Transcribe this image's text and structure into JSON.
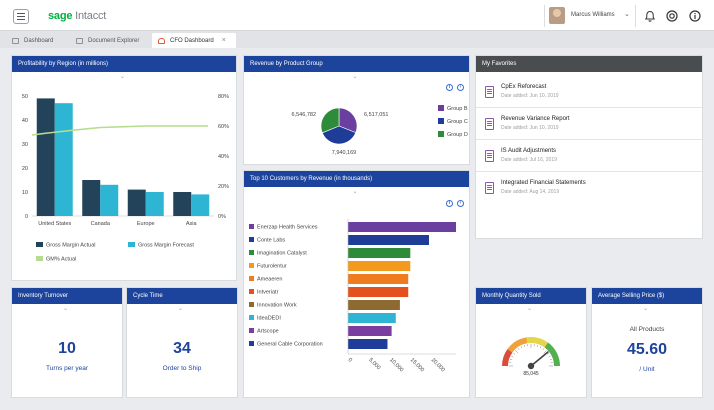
{
  "header": {
    "logo_brand": "sage",
    "logo_product": "Intacct",
    "user_name": "Marcus Williams",
    "user_caret": "⌄",
    "icons": [
      "menu-icon",
      "bell-icon",
      "help-circle-icon",
      "info-icon"
    ]
  },
  "tabs": [
    {
      "label": "Dashboard",
      "icon": "folder-icon"
    },
    {
      "label": "Document Explorer",
      "icon": "folder-icon"
    },
    {
      "label": "CFO Dashboard",
      "icon": "dashboard-icon",
      "close": "×"
    }
  ],
  "panels": {
    "profitability": {
      "title": "Profitability by Region (in millions)",
      "chart_data": {
        "type": "bar",
        "categories": [
          "United States",
          "Canada",
          "Europe",
          "Asia"
        ],
        "series": [
          {
            "name": "Gross Margin Actual",
            "values": [
              49,
              15,
              11,
              10
            ],
            "color": "#22435a"
          },
          {
            "name": "Gross Margin Forecast",
            "values": [
              47,
              13,
              10,
              9
            ],
            "color": "#2eb5d3"
          },
          {
            "name": "GM% Actual",
            "values": [
              56,
              59,
              60,
              60
            ],
            "color": "#b6dc8e"
          }
        ],
        "y_left": {
          "min": 0,
          "max": 50,
          "ticks": [
            "0",
            "10",
            "20",
            "30",
            "40",
            "50"
          ]
        },
        "y_right": {
          "min": 0,
          "max": 80,
          "ticks": [
            "0%",
            "20%",
            "40%",
            "60%",
            "80%"
          ]
        }
      }
    },
    "revenue_group": {
      "title": "Revenue by Product Group",
      "chart_data": {
        "type": "pie",
        "slices": [
          {
            "name": "Group B",
            "value": 6517051,
            "label": "6,517,051",
            "color": "#6b3fa0"
          },
          {
            "name": "Group C",
            "value": 7940169,
            "label": "7,940,169",
            "color": "#1f3c99"
          },
          {
            "name": "Group D",
            "value": 6546782,
            "label": "6,546,782",
            "color": "#2e8b3a"
          }
        ]
      }
    },
    "favorites": {
      "title": "My Favorites",
      "items": [
        {
          "title": "CpEx Reforecast",
          "date": "Date added: Jun 10, 2019"
        },
        {
          "title": "Revenue Variance Report",
          "date": "Date added: Jun 10, 2019"
        },
        {
          "title": "IS Audit Adjustments",
          "date": "Date added: Jul 16, 2019"
        },
        {
          "title": "Integrated Financial Statements",
          "date": "Date added: Aug 14, 2019"
        }
      ]
    },
    "top_customers": {
      "title": "Top 10 Customers by Revenue (in thousands)",
      "chart_data": {
        "type": "bar",
        "orientation": "horizontal",
        "categories": [
          "Enerzap Health Services",
          "Conte Labs",
          "Imagination Catalyst",
          "Futurolentur",
          "Ameaeren",
          "Intveriatr",
          "Innovation Work",
          "IdeaDEDI",
          "Artscope",
          "General Cable Corporation"
        ],
        "values": [
          26000,
          19500,
          15000,
          15000,
          14500,
          14500,
          12500,
          11500,
          10500,
          9500
        ],
        "colors": [
          "#6b3fa0",
          "#1f3c99",
          "#2e8b3a",
          "#f39a1e",
          "#ef7d1f",
          "#e4511f",
          "#8d6a2f",
          "#2eb5d3",
          "#7a3ea0",
          "#1f3c99"
        ],
        "x_ticks": [
          "0",
          "5,000",
          "10,000",
          "15,000",
          "20,000"
        ],
        "xlim": [
          0,
          26000
        ]
      }
    },
    "inventory": {
      "title": "Inventory Turnover",
      "value": "10",
      "sub": "Turns per year"
    },
    "cycle": {
      "title": "Cycle Time",
      "value": "34",
      "sub": "Order to Ship"
    },
    "monthly_qty": {
      "title": "Monthly Quantity Sold",
      "value": "85,045",
      "gauge_fraction": 0.78
    },
    "avg_price": {
      "title": "Average Selling Price ($)",
      "label": "All Products",
      "value": "45.60",
      "unit": "/ Unit"
    }
  }
}
